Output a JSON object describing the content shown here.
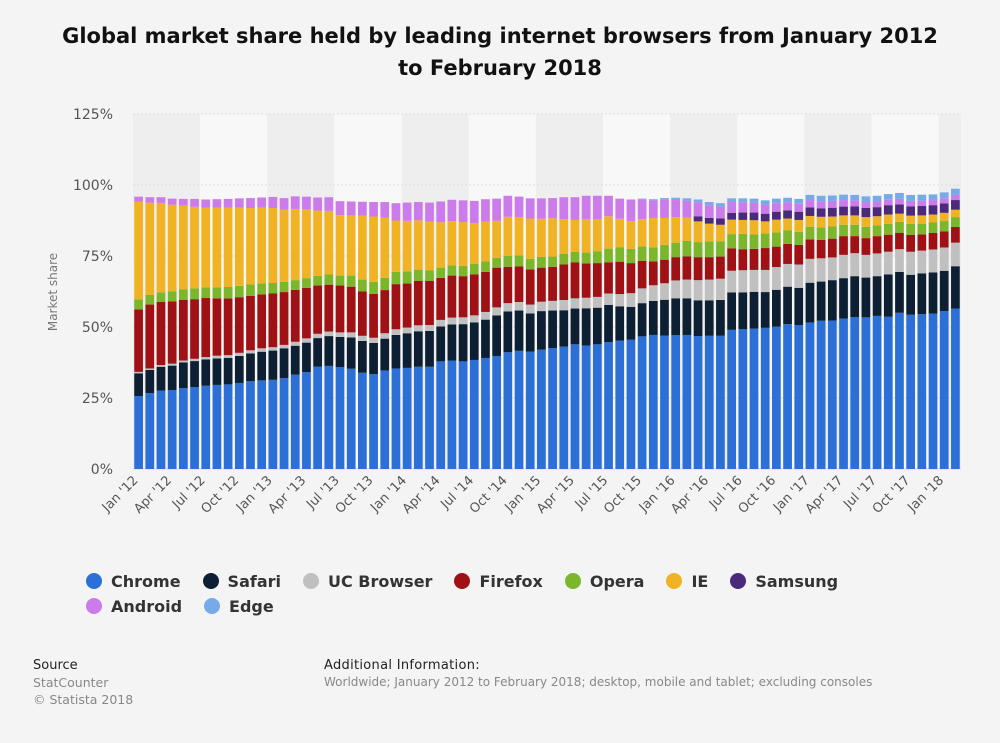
{
  "chart_data": {
    "type": "bar",
    "stacked": true,
    "title": "Global market share held by leading internet browsers from January 2012 to February 2018",
    "ylabel": "Market share",
    "xlabel": "",
    "ylim": [
      0,
      125
    ],
    "yticks": [
      "0%",
      "25%",
      "50%",
      "75%",
      "100%",
      "125%"
    ],
    "grid": true,
    "legend_position": "bottom",
    "categories": [
      "Jan '12",
      "Feb '12",
      "Mar '12",
      "Apr '12",
      "May '12",
      "Jun '12",
      "Jul '12",
      "Aug '12",
      "Sep '12",
      "Oct '12",
      "Nov '12",
      "Dec '12",
      "Jan '13",
      "Feb '13",
      "Mar '13",
      "Apr '13",
      "May '13",
      "Jun '13",
      "Jul '13",
      "Aug '13",
      "Sep '13",
      "Oct '13",
      "Nov '13",
      "Dec '13",
      "Jan '14",
      "Feb '14",
      "Mar '14",
      "Apr '14",
      "May '14",
      "Jun '14",
      "Jul '14",
      "Aug '14",
      "Sep '14",
      "Oct '14",
      "Nov '14",
      "Dec '14",
      "Jan '15",
      "Feb '15",
      "Mar '15",
      "Apr '15",
      "May '15",
      "Jun '15",
      "Jul '15",
      "Aug '15",
      "Sep '15",
      "Oct '15",
      "Nov '15",
      "Dec '15",
      "Jan '16",
      "Feb '16",
      "Mar '16",
      "Apr '16",
      "May '16",
      "Jun '16",
      "Jul '16",
      "Aug '16",
      "Sep '16",
      "Oct '16",
      "Nov '16",
      "Dec '16",
      "Jan '17",
      "Feb '17",
      "Mar '17",
      "Apr '17",
      "May '17",
      "Jun '17",
      "Jul '17",
      "Aug '17",
      "Sep '17",
      "Oct '17",
      "Nov '17",
      "Dec '17",
      "Jan '18",
      "Feb '18"
    ],
    "xtick_labels": [
      "Jan '12",
      "Apr '12",
      "Jul '12",
      "Oct '12",
      "Jan '13",
      "Apr '13",
      "Jul '13",
      "Oct '13",
      "Jan '14",
      "Apr '14",
      "Jul '14",
      "Oct '14",
      "Jan '15",
      "Apr '15",
      "Jul '15",
      "Oct '15",
      "Jan '16",
      "Apr '16",
      "Jul '16",
      "Oct '16",
      "Jan '17",
      "Apr '17",
      "Jul '17",
      "Oct '17",
      "Jan '18"
    ],
    "series": [
      {
        "name": "Chrome",
        "color": "#2b6fd7",
        "values": [
          25.7,
          26.7,
          27.6,
          27.8,
          28.5,
          28.8,
          29.3,
          29.6,
          29.8,
          30.3,
          30.9,
          31.2,
          31.4,
          32.0,
          33.2,
          34.1,
          36.0,
          36.3,
          35.9,
          35.3,
          33.9,
          33.4,
          34.7,
          35.4,
          35.6,
          36.0,
          36.0,
          37.9,
          38.2,
          37.9,
          38.4,
          39.1,
          39.8,
          41.1,
          41.6,
          41.3,
          42.0,
          42.6,
          43.1,
          43.9,
          43.5,
          43.9,
          44.7,
          45.2,
          45.5,
          46.7,
          47.2,
          47.0,
          47.1,
          47.2,
          46.8,
          46.9,
          46.9,
          49.0,
          49.2,
          49.4,
          49.7,
          50.1,
          51.0,
          50.7,
          51.6,
          52.2,
          52.3,
          53.0,
          53.5,
          53.4,
          53.9,
          53.6,
          55.0,
          54.3,
          54.5,
          54.7,
          55.6,
          56.5
        ]
      },
      {
        "name": "Safari",
        "color": "#0d2033",
        "values": [
          8.0,
          8.2,
          8.4,
          8.6,
          9.0,
          9.2,
          9.3,
          9.3,
          9.3,
          9.5,
          9.8,
          10.1,
          10.3,
          10.5,
          10.2,
          10.4,
          10.1,
          10.5,
          10.6,
          11.0,
          11.2,
          11.0,
          11.2,
          11.8,
          12.2,
          12.5,
          12.6,
          12.3,
          12.7,
          13.1,
          13.2,
          13.5,
          14.3,
          14.4,
          14.2,
          13.5,
          13.6,
          13.2,
          12.8,
          12.6,
          13.1,
          12.9,
          13.1,
          12.1,
          11.6,
          11.7,
          12.0,
          12.6,
          13.0,
          12.9,
          12.6,
          12.5,
          12.6,
          13.2,
          13.0,
          13.0,
          12.6,
          13.0,
          13.2,
          13.1,
          14.0,
          13.8,
          14.2,
          14.2,
          14.4,
          14.0,
          14.0,
          14.9,
          14.4,
          14.1,
          14.4,
          14.5,
          14.2,
          14.9
        ]
      },
      {
        "name": "UC Browser",
        "color": "#c0c0c0",
        "values": [
          0.5,
          0.5,
          0.6,
          0.7,
          0.7,
          0.8,
          0.8,
          1.0,
          1.0,
          1.1,
          1.1,
          1.2,
          1.2,
          1.2,
          1.4,
          1.5,
          1.5,
          1.6,
          1.6,
          1.8,
          1.8,
          1.8,
          1.9,
          2.0,
          2.0,
          2.1,
          2.1,
          2.3,
          2.4,
          2.4,
          2.5,
          2.7,
          2.8,
          2.9,
          3.0,
          3.1,
          3.3,
          3.4,
          3.6,
          3.6,
          3.7,
          3.8,
          4.0,
          4.3,
          4.8,
          5.2,
          5.5,
          5.8,
          6.3,
          6.6,
          7.1,
          7.3,
          7.5,
          7.6,
          7.8,
          7.7,
          7.8,
          8.0,
          8.0,
          8.2,
          8.4,
          8.2,
          8.0,
          8.2,
          8.1,
          8.0,
          8.0,
          8.0,
          8.0,
          8.1,
          8.0,
          8.1,
          8.2,
          8.3
        ]
      },
      {
        "name": "Firefox",
        "color": "#a01116",
        "values": [
          22.0,
          22.5,
          22.2,
          21.9,
          21.4,
          21.0,
          20.8,
          20.2,
          20.0,
          19.6,
          19.2,
          19.0,
          18.9,
          18.6,
          18.3,
          17.8,
          17.0,
          16.5,
          16.5,
          16.1,
          15.6,
          15.5,
          15.2,
          15.9,
          15.5,
          15.6,
          15.5,
          14.8,
          14.8,
          14.5,
          14.4,
          14.1,
          14.0,
          12.8,
          12.5,
          12.4,
          12.0,
          12.0,
          12.5,
          12.7,
          12.1,
          11.9,
          11.0,
          11.4,
          10.6,
          9.7,
          8.4,
          8.3,
          8.2,
          8.2,
          8.1,
          7.9,
          7.8,
          7.9,
          7.4,
          7.4,
          7.7,
          7.2,
          7.1,
          6.9,
          6.8,
          6.5,
          6.6,
          6.6,
          6.0,
          5.9,
          6.1,
          6.0,
          5.8,
          5.9,
          5.7,
          5.8,
          5.7,
          5.5
        ]
      },
      {
        "name": "Opera",
        "color": "#7cb62a",
        "values": [
          3.5,
          3.4,
          3.4,
          3.6,
          3.7,
          3.8,
          3.8,
          3.9,
          4.0,
          4.0,
          4.0,
          3.9,
          3.7,
          3.6,
          3.4,
          3.4,
          3.4,
          3.6,
          3.5,
          3.9,
          4.2,
          4.2,
          4.3,
          4.3,
          4.3,
          4.0,
          3.7,
          3.6,
          3.6,
          3.6,
          3.8,
          3.7,
          3.5,
          3.8,
          3.9,
          3.7,
          3.8,
          3.6,
          3.8,
          3.7,
          3.8,
          4.2,
          4.8,
          5.0,
          5.0,
          5.1,
          5.0,
          5.2,
          5.1,
          5.4,
          5.3,
          5.5,
          5.4,
          5.0,
          5.4,
          5.1,
          5.1,
          5.0,
          4.8,
          4.6,
          4.5,
          4.4,
          4.3,
          4.0,
          4.0,
          4.0,
          3.8,
          3.8,
          3.8,
          3.9,
          3.8,
          3.7,
          3.6,
          3.5
        ]
      },
      {
        "name": "IE",
        "color": "#f0b323",
        "values": [
          34.5,
          32.5,
          31.5,
          30.5,
          29.4,
          28.7,
          28.0,
          28.0,
          27.9,
          27.5,
          26.9,
          26.6,
          26.4,
          25.4,
          25.0,
          24.2,
          23.0,
          22.4,
          21.3,
          21.2,
          22.5,
          23.0,
          21.2,
          18.1,
          17.8,
          17.4,
          17.2,
          16.0,
          15.6,
          15.4,
          14.3,
          14.0,
          13.0,
          13.8,
          13.5,
          14.2,
          13.4,
          13.5,
          12.2,
          11.2,
          11.7,
          11.2,
          11.4,
          10.1,
          9.8,
          9.6,
          10.3,
          9.5,
          9.0,
          8.2,
          7.3,
          6.3,
          5.8,
          5.1,
          4.9,
          5.0,
          4.3,
          4.5,
          4.1,
          4.2,
          3.8,
          3.7,
          3.5,
          3.3,
          3.3,
          3.4,
          3.2,
          3.3,
          2.9,
          2.9,
          2.9,
          2.8,
          2.9,
          2.6
        ]
      },
      {
        "name": "Samsung",
        "color": "#4c2a7b",
        "values": [
          0,
          0,
          0,
          0,
          0,
          0,
          0,
          0,
          0,
          0,
          0,
          0,
          0,
          0,
          0,
          0,
          0,
          0,
          0,
          0,
          0,
          0,
          0,
          0,
          0,
          0,
          0,
          0,
          0,
          0,
          0,
          0,
          0,
          0,
          0,
          0,
          0,
          0,
          0,
          0,
          0,
          0,
          0,
          0,
          0,
          0,
          0,
          0,
          0,
          0,
          1.8,
          2.0,
          2.2,
          2.4,
          2.6,
          2.7,
          2.7,
          2.8,
          2.9,
          2.9,
          3.0,
          3.0,
          3.1,
          3.1,
          3.2,
          3.2,
          3.2,
          3.3,
          3.3,
          3.3,
          3.3,
          3.3,
          3.3,
          3.4
        ]
      },
      {
        "name": "Android",
        "color": "#cc7bea",
        "values": [
          1.7,
          1.9,
          2.0,
          2.1,
          2.4,
          2.8,
          2.9,
          3.0,
          3.1,
          3.3,
          3.5,
          3.6,
          3.9,
          4.1,
          4.5,
          4.5,
          4.6,
          4.8,
          4.9,
          4.9,
          4.9,
          5.1,
          5.5,
          6.1,
          6.4,
          6.4,
          6.7,
          7.3,
          7.5,
          7.7,
          7.8,
          7.9,
          7.8,
          7.4,
          7.2,
          7.1,
          7.2,
          7.1,
          7.7,
          8.0,
          8.3,
          8.3,
          7.2,
          7.1,
          7.6,
          7.0,
          6.2,
          6.4,
          6.0,
          5.9,
          4.9,
          4.5,
          4.2,
          3.8,
          3.6,
          3.4,
          3.2,
          3.0,
          2.8,
          2.8,
          2.6,
          2.5,
          2.4,
          2.3,
          2.1,
          2.1,
          2.0,
          1.9,
          1.9,
          1.9,
          1.9,
          1.8,
          1.8,
          1.8
        ]
      },
      {
        "name": "Edge",
        "color": "#76aae8",
        "values": [
          0,
          0,
          0,
          0,
          0,
          0,
          0,
          0,
          0,
          0,
          0,
          0,
          0,
          0,
          0,
          0,
          0,
          0,
          0,
          0,
          0,
          0,
          0,
          0,
          0,
          0,
          0,
          0,
          0,
          0,
          0,
          0,
          0,
          0,
          0,
          0,
          0,
          0,
          0,
          0,
          0,
          0,
          0,
          0,
          0,
          0.2,
          0.4,
          0.6,
          0.8,
          0.9,
          1.0,
          1.1,
          1.2,
          1.3,
          1.4,
          1.5,
          1.5,
          1.6,
          1.6,
          1.7,
          1.8,
          1.9,
          1.9,
          1.9,
          1.9,
          2.0,
          2.0,
          2.0,
          2.1,
          2.1,
          2.1,
          2.0,
          2.1,
          2.2
        ]
      }
    ]
  },
  "legend": [
    {
      "label": "Chrome",
      "color": "#2b6fd7"
    },
    {
      "label": "Safari",
      "color": "#0d2033"
    },
    {
      "label": "UC Browser",
      "color": "#c0c0c0"
    },
    {
      "label": "Firefox",
      "color": "#a01116"
    },
    {
      "label": "Opera",
      "color": "#7cb62a"
    },
    {
      "label": "IE",
      "color": "#f0b323"
    },
    {
      "label": "Samsung",
      "color": "#4c2a7b"
    },
    {
      "label": "Android",
      "color": "#cc7bea"
    },
    {
      "label": "Edge",
      "color": "#76aae8"
    }
  ],
  "footer": {
    "source_header": "Source",
    "source_name": "StatCounter",
    "copyright": "© Statista 2018",
    "additional_header": "Additional Information:",
    "additional_text": "Worldwide; January 2012 to February 2018; desktop, mobile and tablet; excluding consoles"
  }
}
